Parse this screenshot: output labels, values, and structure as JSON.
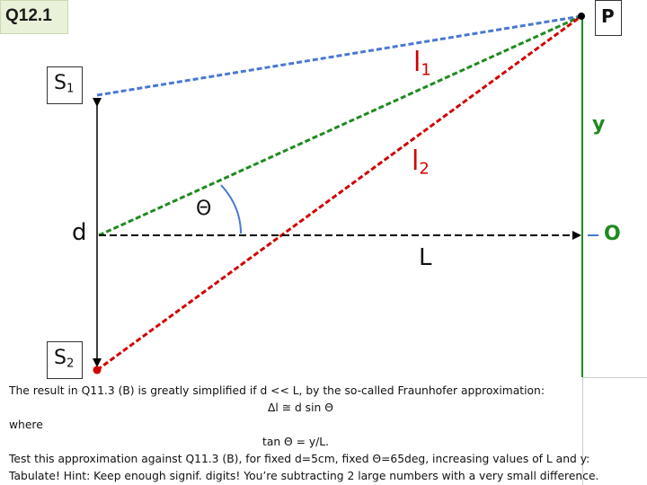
{
  "slide": {
    "question_label": "Q12.1",
    "labels": {
      "P": "P",
      "S1_main": "S",
      "S1_sub": "1",
      "S2_main": "S",
      "S2_sub": "2",
      "l1_main": "l",
      "l1_sub": "1",
      "l2_main": "l",
      "l2_sub": "2",
      "y": "y",
      "d": "d",
      "theta": "Θ",
      "L": "L",
      "O": "O"
    },
    "text_lines": [
      "The result in Q11.3 (B) is greatly simplified if d << L, by the so-called Fraunhofer approximation:",
      "Δl  ≅  d sin Θ",
      "where",
      "tan Θ  =  y/L.",
      "Test this approximation against Q11.3 (B), for fixed d=5cm, fixed Θ=65deg, increasing values of L and y:",
      "Tabulate! Hint: Keep enough signif. digits! You’re subtracting 2 large numbers with a very small difference."
    ],
    "colors": {
      "l1_line": "#4a78d0",
      "l2_line": "#1f8a1f",
      "red_line": "#d10000",
      "vertical_line": "#1f8a1f",
      "badge_bg": "#e9f1d9"
    }
  }
}
